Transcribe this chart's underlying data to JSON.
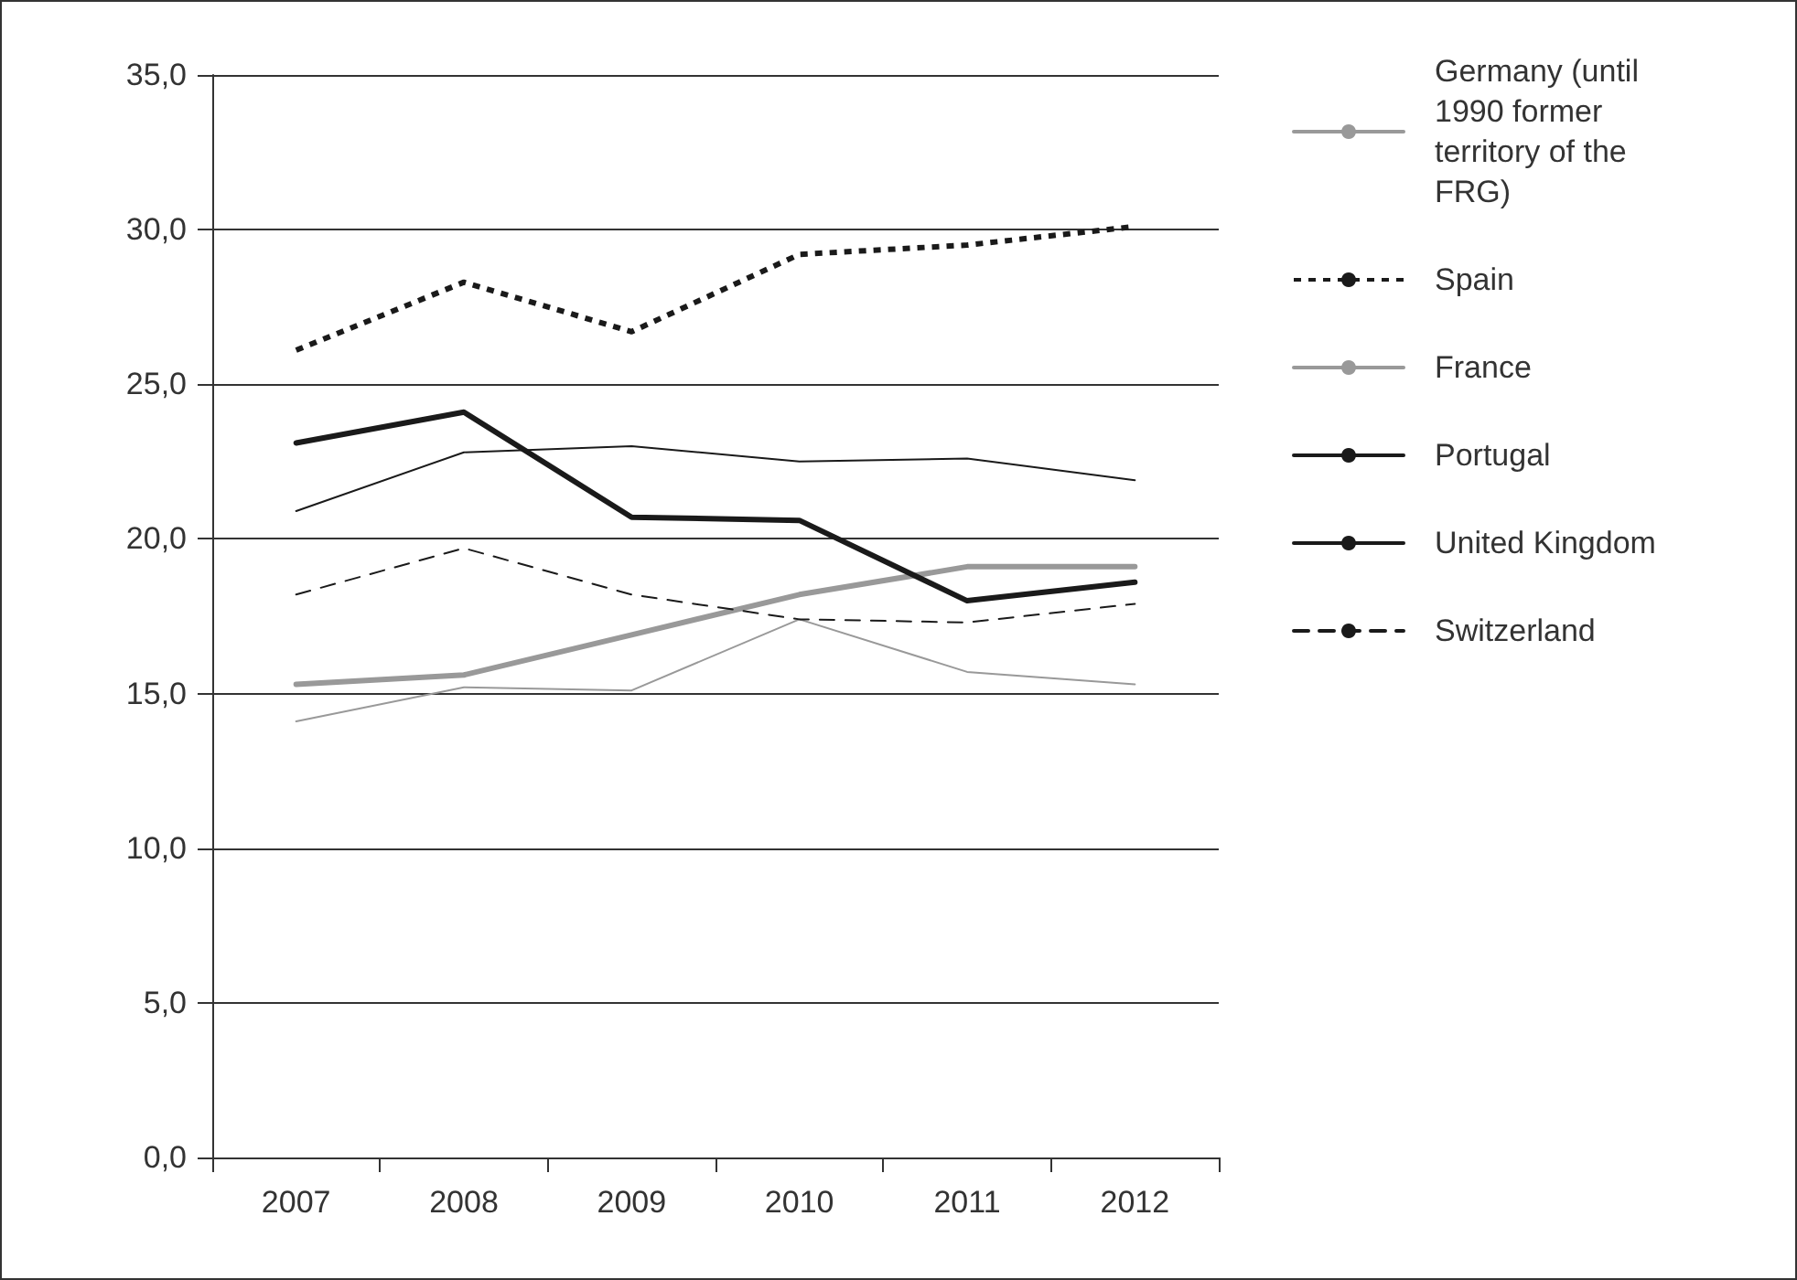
{
  "chart_data": {
    "type": "line",
    "categories": [
      "2007",
      "2008",
      "2009",
      "2010",
      "2011",
      "2012"
    ],
    "ylim": [
      0,
      35
    ],
    "yticks": [
      {
        "value": 0,
        "label": "0,0"
      },
      {
        "value": 5,
        "label": "5,0"
      },
      {
        "value": 10,
        "label": "10,0"
      },
      {
        "value": 15,
        "label": "15,0"
      },
      {
        "value": 20,
        "label": "20,0"
      },
      {
        "value": 25,
        "label": "25,0"
      },
      {
        "value": 30,
        "label": "30,0"
      },
      {
        "value": 35,
        "label": "35,0"
      }
    ],
    "grid": "y",
    "legend": "right",
    "marker": "none",
    "series": [
      {
        "name": "Germany (until 1990 former territory of the FRG)",
        "color": "#999999",
        "line_style": "solid",
        "values": [
          14.1,
          15.2,
          15.1,
          17.4,
          15.7,
          15.3
        ]
      },
      {
        "name": "Spain",
        "color": "#1a1a1a",
        "line_style": "dotted",
        "values": [
          26.1,
          28.3,
          26.7,
          29.2,
          29.5,
          30.1
        ]
      },
      {
        "name": "France",
        "color": "#999999",
        "line_style": "solid",
        "values": [
          15.3,
          15.6,
          16.9,
          18.2,
          19.1,
          19.1
        ]
      },
      {
        "name": "Portugal",
        "color": "#1a1a1a",
        "line_style": "solid",
        "values": [
          20.9,
          22.8,
          23.0,
          22.5,
          22.6,
          21.9
        ]
      },
      {
        "name": "United Kingdom",
        "color": "#1a1a1a",
        "line_style": "solid",
        "values": [
          23.1,
          24.1,
          20.7,
          20.6,
          18.0,
          18.6
        ]
      },
      {
        "name": "Switzerland",
        "color": "#1a1a1a",
        "line_style": "dashed",
        "values": [
          18.2,
          19.7,
          18.2,
          17.4,
          17.3,
          17.9
        ]
      }
    ]
  }
}
